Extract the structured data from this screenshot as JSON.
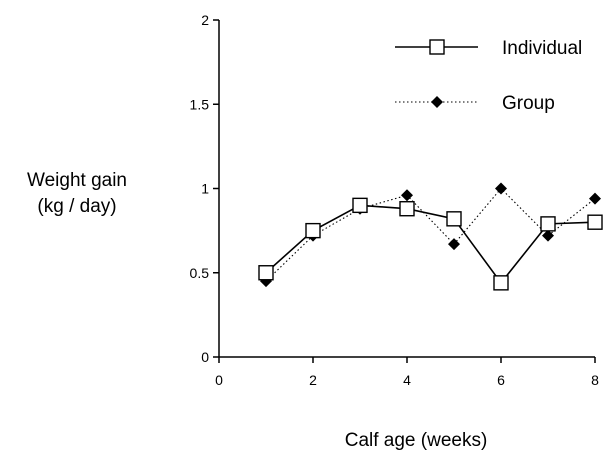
{
  "chart_data": {
    "type": "line",
    "title": "",
    "ylabel_lines": [
      "Weight gain",
      "(kg / day)"
    ],
    "xlabel": "Calf age (weeks)",
    "xlim": [
      0,
      8
    ],
    "ylim": [
      0,
      2
    ],
    "xticks": [
      0,
      2,
      4,
      6,
      8
    ],
    "yticks": [
      0,
      0.5,
      1,
      1.5,
      2
    ],
    "ytick_labels": [
      "0",
      "0.5",
      "1",
      "1.5",
      "2"
    ],
    "grid": false,
    "legend_position": "top-right",
    "series": [
      {
        "name": "Individual",
        "marker": "open-square",
        "line_style": "solid",
        "color": "#000000",
        "x": [
          1,
          2,
          3,
          4,
          5,
          6,
          7,
          8
        ],
        "y": [
          0.5,
          0.75,
          0.9,
          0.88,
          0.82,
          0.44,
          0.79,
          0.8
        ]
      },
      {
        "name": "Group",
        "marker": "filled-diamond",
        "line_style": "dotted",
        "color": "#000000",
        "x": [
          1,
          2,
          3,
          4,
          5,
          6,
          7,
          8
        ],
        "y": [
          0.45,
          0.72,
          0.88,
          0.96,
          0.67,
          1.0,
          0.72,
          0.94
        ]
      }
    ]
  }
}
